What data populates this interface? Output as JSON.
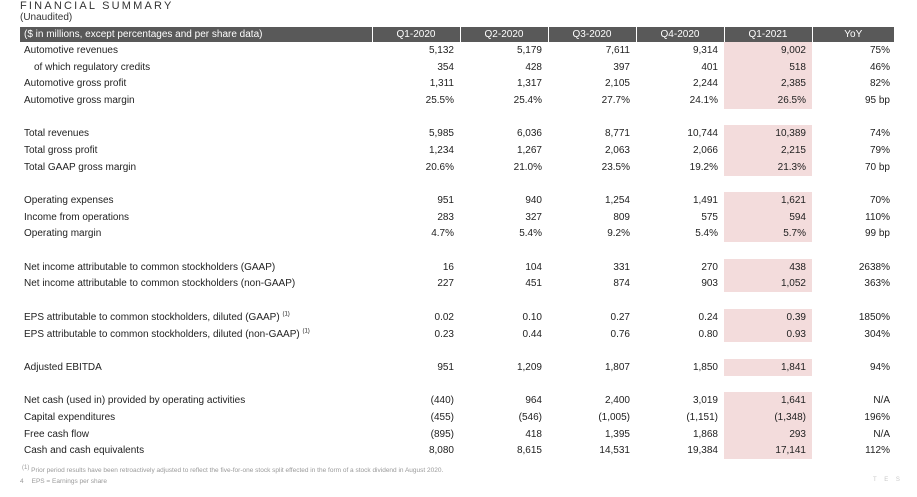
{
  "title": "FINANCIAL SUMMARY",
  "subtitle": "(Unaudited)",
  "header": {
    "label": "($ in millions, except percentages and per share data)",
    "periods": [
      "Q1-2020",
      "Q2-2020",
      "Q3-2020",
      "Q4-2020",
      "Q1-2021"
    ],
    "yoy": "YoY"
  },
  "rows": [
    {
      "label": "Automotive revenues",
      "sup": "",
      "indent": false,
      "values": [
        "5,132",
        "5,179",
        "7,611",
        "9,314",
        "9,002"
      ],
      "yoy": "75%"
    },
    {
      "label": "of which regulatory credits",
      "sup": "",
      "indent": true,
      "values": [
        "354",
        "428",
        "397",
        "401",
        "518"
      ],
      "yoy": "46%"
    },
    {
      "label": "Automotive gross profit",
      "sup": "",
      "indent": false,
      "values": [
        "1,311",
        "1,317",
        "2,105",
        "2,244",
        "2,385"
      ],
      "yoy": "82%"
    },
    {
      "label": "Automotive gross margin",
      "sup": "",
      "indent": false,
      "values": [
        "25.5%",
        "25.4%",
        "27.7%",
        "24.1%",
        "26.5%"
      ],
      "yoy": "95 bp"
    },
    {
      "gap": true
    },
    {
      "label": "Total revenues",
      "sup": "",
      "indent": false,
      "values": [
        "5,985",
        "6,036",
        "8,771",
        "10,744",
        "10,389"
      ],
      "yoy": "74%"
    },
    {
      "label": "Total gross profit",
      "sup": "",
      "indent": false,
      "values": [
        "1,234",
        "1,267",
        "2,063",
        "2,066",
        "2,215"
      ],
      "yoy": "79%"
    },
    {
      "label": "Total GAAP gross margin",
      "sup": "",
      "indent": false,
      "values": [
        "20.6%",
        "21.0%",
        "23.5%",
        "19.2%",
        "21.3%"
      ],
      "yoy": "70 bp"
    },
    {
      "gap": true
    },
    {
      "label": "Operating expenses",
      "sup": "",
      "indent": false,
      "values": [
        "951",
        "940",
        "1,254",
        "1,491",
        "1,621"
      ],
      "yoy": "70%"
    },
    {
      "label": "Income from operations",
      "sup": "",
      "indent": false,
      "values": [
        "283",
        "327",
        "809",
        "575",
        "594"
      ],
      "yoy": "110%"
    },
    {
      "label": "Operating margin",
      "sup": "",
      "indent": false,
      "values": [
        "4.7%",
        "5.4%",
        "9.2%",
        "5.4%",
        "5.7%"
      ],
      "yoy": "99 bp"
    },
    {
      "gap": true
    },
    {
      "label": "Net income attributable to common stockholders (GAAP)",
      "sup": "",
      "indent": false,
      "values": [
        "16",
        "104",
        "331",
        "270",
        "438"
      ],
      "yoy": "2638%"
    },
    {
      "label": "Net income attributable to common stockholders (non-GAAP)",
      "sup": "",
      "indent": false,
      "values": [
        "227",
        "451",
        "874",
        "903",
        "1,052"
      ],
      "yoy": "363%"
    },
    {
      "gap": true
    },
    {
      "label": "EPS attributable to common stockholders, diluted (GAAP) ",
      "sup": "(1)",
      "indent": false,
      "values": [
        "0.02",
        "0.10",
        "0.27",
        "0.24",
        "0.39"
      ],
      "yoy": "1850%"
    },
    {
      "label": "EPS attributable to common stockholders, diluted (non-GAAP) ",
      "sup": "(1)",
      "indent": false,
      "values": [
        "0.23",
        "0.44",
        "0.76",
        "0.80",
        "0.93"
      ],
      "yoy": "304%"
    },
    {
      "gap": true
    },
    {
      "label": "Adjusted EBITDA",
      "sup": "",
      "indent": false,
      "values": [
        "951",
        "1,209",
        "1,807",
        "1,850",
        "1,841"
      ],
      "yoy": "94%"
    },
    {
      "gap": true
    },
    {
      "label": "Net cash (used in) provided by operating activities",
      "sup": "",
      "indent": false,
      "values": [
        "(440)",
        "964",
        "2,400",
        "3,019",
        "1,641"
      ],
      "yoy": "N/A"
    },
    {
      "label": "Capital expenditures",
      "sup": "",
      "indent": false,
      "values": [
        "(455)",
        "(546)",
        "(1,005)",
        "(1,151)",
        "(1,348)"
      ],
      "yoy": "196%"
    },
    {
      "label": "Free cash flow",
      "sup": "",
      "indent": false,
      "values": [
        "(895)",
        "418",
        "1,395",
        "1,868",
        "293"
      ],
      "yoy": "N/A"
    },
    {
      "label": "Cash and cash equivalents",
      "sup": "",
      "indent": false,
      "values": [
        "8,080",
        "8,615",
        "14,531",
        "19,384",
        "17,141"
      ],
      "yoy": "112%"
    }
  ],
  "footnotes": {
    "note1_marker": "(1)",
    "note1": " Prior period results have been retroactively adjusted to reflect the five-for-one stock split effected in the form of a stock dividend in August 2020.",
    "page_number": "4",
    "note2": "EPS = Earnings per share"
  },
  "logo_text": "T E S",
  "colors": {
    "header_bg": "#595959",
    "highlight": "#f3dcdc",
    "text": "#222222"
  }
}
